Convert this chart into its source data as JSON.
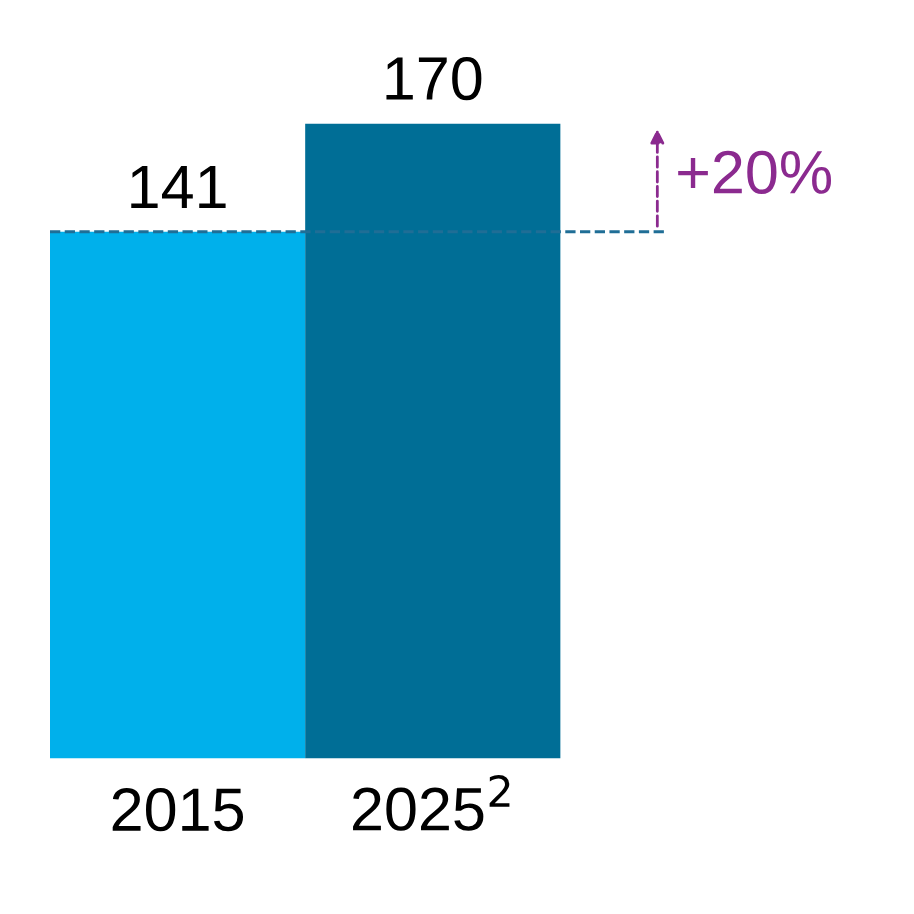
{
  "chart_data": {
    "type": "bar",
    "categories": [
      "2015",
      "2025$^{2}$"
    ],
    "values": [
      141,
      170
    ],
    "colors": [
      "#00b0eb",
      "#006e96"
    ],
    "data_labels": true,
    "grid": false,
    "legend": false,
    "ref_lines": [
      {
        "axis": "y",
        "value": 141,
        "color": "#1f6e96",
        "line_style": "dashed"
      }
    ],
    "annotations": [
      "+20%"
    ]
  }
}
